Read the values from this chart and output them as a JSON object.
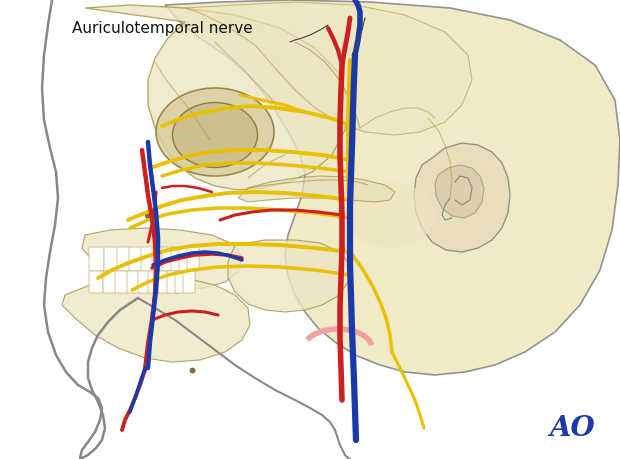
{
  "title": "Auriculotemporal nerve",
  "bg_color": "#ffffff",
  "skull_fill": "#f0e8c0",
  "skull_stroke": "#b0a060",
  "outline_color": "#888888",
  "nerve_yellow": "#e8c000",
  "artery_red": "#cc2020",
  "vein_blue": "#1a3aaa",
  "pink_loop": "#f0a0a0",
  "AO_color": "#1a3aaa",
  "AO_fontsize": 20
}
